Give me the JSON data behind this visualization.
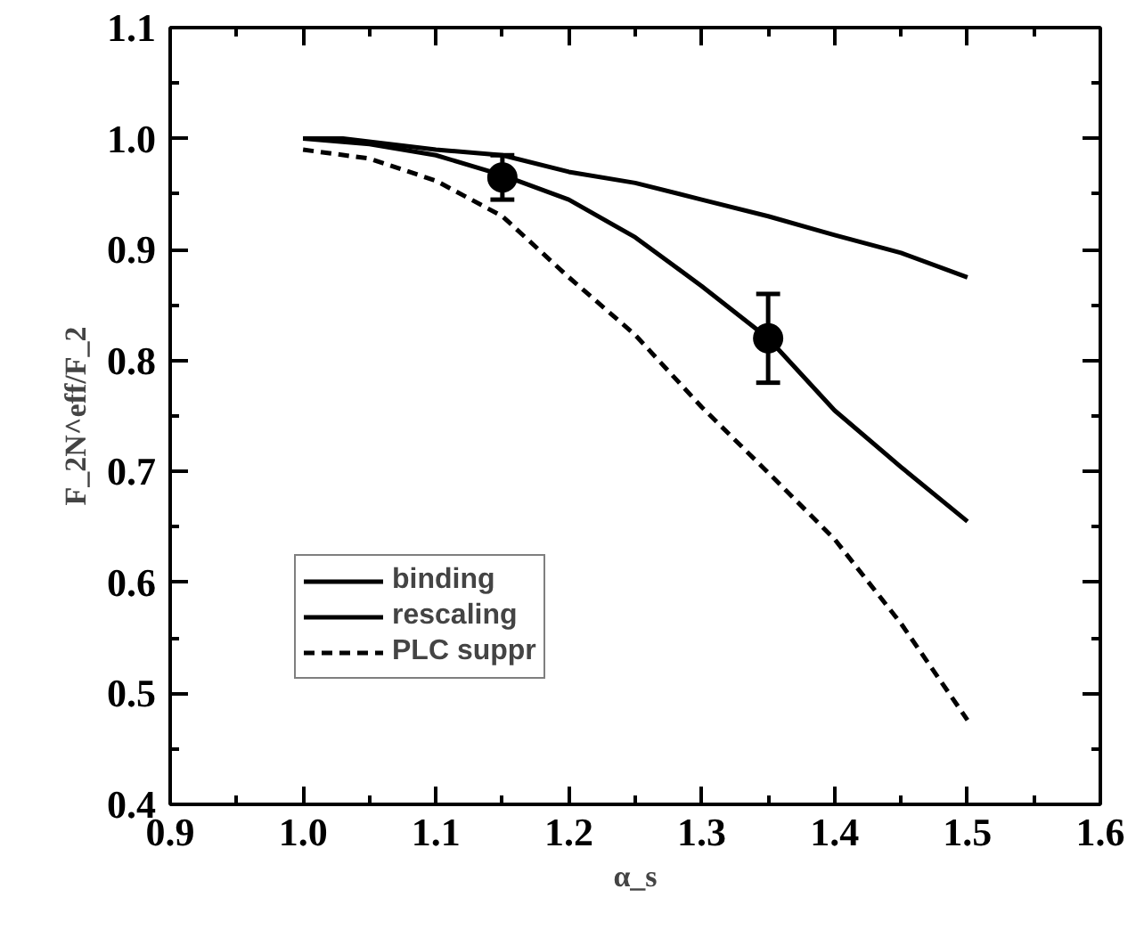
{
  "chart_data": {
    "type": "line",
    "xlabel": "α_s",
    "ylabel": "F_2N^eff/F_2",
    "xlim": [
      0.9,
      1.6
    ],
    "ylim": [
      0.4,
      1.1
    ],
    "xticks": [
      0.9,
      {
        "value": 1,
        "label": "1.0"
      },
      1.1,
      1.2,
      1.3,
      1.4,
      1.5,
      1.6
    ],
    "yticks": [
      0.4,
      0.5,
      0.6,
      0.7,
      0.8,
      0.9,
      {
        "value": 1,
        "label": "1.0"
      },
      1.1
    ],
    "grid": false,
    "legend": "bottom left",
    "marker": "none",
    "series": [
      {
        "name": "binding",
        "color": "#000000",
        "line_style": "solid",
        "x": [
          1.0,
          1.03,
          1.1,
          1.15,
          1.2,
          1.25,
          1.3,
          1.35,
          1.4,
          1.45,
          1.5
        ],
        "values": [
          1.0,
          1.0,
          0.99,
          0.985,
          0.97,
          0.96,
          0.945,
          0.93,
          0.913,
          0.897,
          0.875
        ]
      },
      {
        "name": "rescaling",
        "color": "#000000",
        "line_style": "solid",
        "x": [
          1.0,
          1.05,
          1.1,
          1.15,
          1.2,
          1.25,
          1.3,
          1.35,
          1.4,
          1.45,
          1.5
        ],
        "values": [
          1.0,
          0.995,
          0.985,
          0.967,
          0.945,
          0.911,
          0.867,
          0.82,
          0.755,
          0.704,
          0.655
        ]
      },
      {
        "name": "PLC suppr",
        "color": "#000000",
        "line_style": "dashed",
        "x": [
          1.0,
          1.05,
          1.1,
          1.15,
          1.2,
          1.25,
          1.3,
          1.35,
          1.4,
          1.45,
          1.5
        ],
        "values": [
          0.99,
          0.982,
          0.962,
          0.93,
          0.875,
          0.823,
          0.758,
          0.699,
          0.639,
          0.563,
          0.476
        ]
      },
      {
        "type": "scatter",
        "marker": "circle",
        "color": "#000000",
        "x": [
          1.15,
          1.35
        ],
        "values": [
          0.965,
          0.82
        ],
        "errors": [
          0.02,
          [
            0.78,
            0.86
          ]
        ]
      }
    ]
  }
}
